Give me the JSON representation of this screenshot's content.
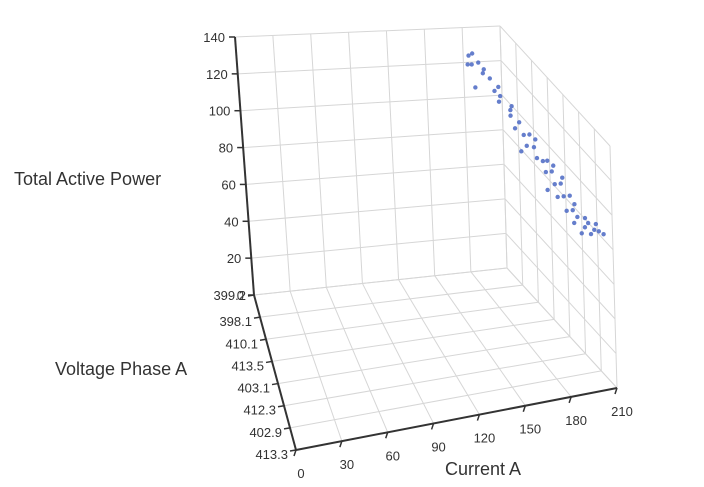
{
  "chart_data": {
    "type": "scatter3d",
    "title": "",
    "xlabel": "Current A",
    "ylabel": "Voltage Phase A",
    "zlabel": "Total Active Power",
    "x_ticks": [
      "0",
      "30",
      "60",
      "90",
      "120",
      "150",
      "180",
      "210"
    ],
    "xlim": [
      0,
      210
    ],
    "y_categories": [
      "399.2",
      "398.1",
      "410.1",
      "413.5",
      "403.1",
      "412.3",
      "402.9",
      "413.3"
    ],
    "z_ticks": [
      "0",
      "20",
      "40",
      "60",
      "80",
      "100",
      "120",
      "140"
    ],
    "zlim": [
      0,
      140
    ],
    "grid": true,
    "point_color": "#5470c6",
    "points": [
      {
        "x": 181,
        "y": 0.3,
        "z": 127
      },
      {
        "x": 183,
        "y": 0.8,
        "z": 128
      },
      {
        "x": 185,
        "y": 0.2,
        "z": 127
      },
      {
        "x": 182,
        "y": 1.2,
        "z": 126
      },
      {
        "x": 180,
        "y": 0.6,
        "z": 125
      },
      {
        "x": 184,
        "y": 1.5,
        "z": 126
      },
      {
        "x": 186,
        "y": 0.9,
        "z": 125
      },
      {
        "x": 182,
        "y": 2.0,
        "z": 124
      },
      {
        "x": 179,
        "y": 0.4,
        "z": 123
      },
      {
        "x": 178,
        "y": 1.0,
        "z": 116
      },
      {
        "x": 181,
        "y": 2.4,
        "z": 122
      },
      {
        "x": 184,
        "y": 2.2,
        "z": 123
      },
      {
        "x": 187,
        "y": 1.8,
        "z": 124
      },
      {
        "x": 185,
        "y": 2.8,
        "z": 121
      },
      {
        "x": 183,
        "y": 3.0,
        "z": 120
      },
      {
        "x": 186,
        "y": 3.3,
        "z": 119
      },
      {
        "x": 188,
        "y": 2.6,
        "z": 121
      },
      {
        "x": 181,
        "y": 3.5,
        "z": 118
      },
      {
        "x": 184,
        "y": 3.8,
        "z": 117
      },
      {
        "x": 187,
        "y": 3.9,
        "z": 118
      },
      {
        "x": 182,
        "y": 4.2,
        "z": 115
      },
      {
        "x": 185,
        "y": 4.4,
        "z": 116
      },
      {
        "x": 189,
        "y": 4.1,
        "z": 117
      },
      {
        "x": 180,
        "y": 4.0,
        "z": 110
      },
      {
        "x": 183,
        "y": 4.8,
        "z": 114
      },
      {
        "x": 186,
        "y": 4.9,
        "z": 113
      },
      {
        "x": 188,
        "y": 5.0,
        "z": 114
      },
      {
        "x": 184,
        "y": 5.3,
        "z": 111
      },
      {
        "x": 187,
        "y": 5.4,
        "z": 112
      },
      {
        "x": 190,
        "y": 5.2,
        "z": 113
      },
      {
        "x": 182,
        "y": 5.6,
        "z": 104
      },
      {
        "x": 185,
        "y": 5.8,
        "z": 109
      },
      {
        "x": 188,
        "y": 5.9,
        "z": 110
      },
      {
        "x": 191,
        "y": 5.7,
        "z": 111
      },
      {
        "x": 183,
        "y": 6.2,
        "z": 106
      },
      {
        "x": 186,
        "y": 6.3,
        "z": 107
      },
      {
        "x": 189,
        "y": 6.4,
        "z": 108
      },
      {
        "x": 184,
        "y": 6.7,
        "z": 103
      },
      {
        "x": 187,
        "y": 6.8,
        "z": 104
      },
      {
        "x": 190,
        "y": 6.6,
        "z": 105
      },
      {
        "x": 185,
        "y": 7.1,
        "z": 100
      },
      {
        "x": 188,
        "y": 7.0,
        "z": 102
      },
      {
        "x": 191,
        "y": 7.2,
        "z": 103
      },
      {
        "x": 186,
        "y": 7.5,
        "z": 98
      },
      {
        "x": 189,
        "y": 7.4,
        "z": 100
      },
      {
        "x": 192,
        "y": 7.3,
        "z": 101
      },
      {
        "x": 190,
        "y": 7.7,
        "z": 99
      },
      {
        "x": 193,
        "y": 7.6,
        "z": 100
      },
      {
        "x": 194,
        "y": 7.8,
        "z": 101
      },
      {
        "x": 195,
        "y": 7.5,
        "z": 102
      },
      {
        "x": 196,
        "y": 7.9,
        "z": 100
      }
    ]
  }
}
